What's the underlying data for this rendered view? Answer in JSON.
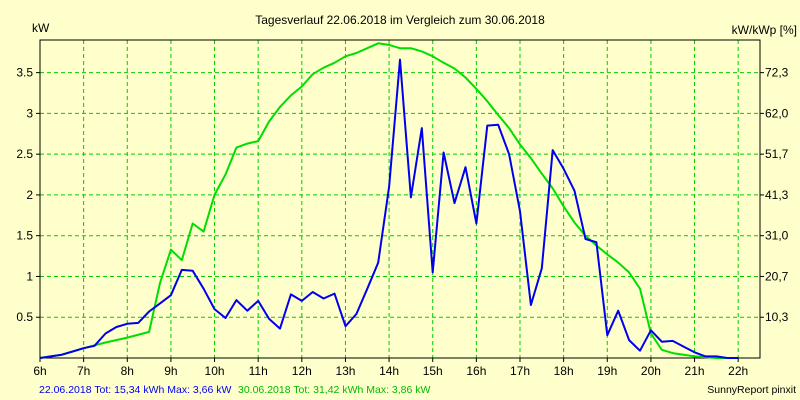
{
  "chart_data": {
    "type": "line",
    "title": "Tagesverlauf 22.06.2018 im Vergleich zum 30.06.2018",
    "ylabel_left": "kW",
    "ylabel_right": "kW/kWp [%]",
    "x_ticks": [
      "6h",
      "7h",
      "8h",
      "9h",
      "10h",
      "11h",
      "12h",
      "13h",
      "14h",
      "15h",
      "16h",
      "17h",
      "18h",
      "19h",
      "20h",
      "21h",
      "22h"
    ],
    "xlim": [
      6,
      22.5
    ],
    "ylim": [
      0,
      3.9
    ],
    "y_ticks": [
      0.5,
      1,
      1.5,
      2,
      2.5,
      3,
      3.5
    ],
    "y_tick_labels": [
      "0.5",
      "1",
      "1.5",
      "2",
      "2.5",
      "3",
      "3.5"
    ],
    "y2_ticks": [
      0.5,
      1.0,
      1.5,
      2.0,
      2.5,
      3.0,
      3.5
    ],
    "y2_tick_labels": [
      "10,3",
      "20,7",
      "31,0",
      "41,3",
      "51,7",
      "62,0",
      "72,3"
    ],
    "grid": true,
    "legend_texts": {
      "series1": "22.06.2018 Tot: 15,34 kWh Max: 3,66 kW",
      "series2": "30.06.2018 Tot: 31,42 kWh Max: 3,86 kW"
    },
    "credit": "SunnyReport pinxit",
    "series": [
      {
        "color": "#0000ee",
        "points": [
          [
            6.0,
            0.0
          ],
          [
            6.25,
            0.02
          ],
          [
            6.5,
            0.04
          ],
          [
            6.75,
            0.08
          ],
          [
            7.0,
            0.12
          ],
          [
            7.25,
            0.15
          ],
          [
            7.5,
            0.3
          ],
          [
            7.75,
            0.38
          ],
          [
            8.0,
            0.42
          ],
          [
            8.25,
            0.43
          ],
          [
            8.5,
            0.57
          ],
          [
            8.75,
            0.67
          ],
          [
            9.0,
            0.77
          ],
          [
            9.25,
            1.08
          ],
          [
            9.5,
            1.07
          ],
          [
            9.75,
            0.85
          ],
          [
            10.0,
            0.6
          ],
          [
            10.25,
            0.49
          ],
          [
            10.5,
            0.71
          ],
          [
            10.75,
            0.58
          ],
          [
            11.0,
            0.7
          ],
          [
            11.25,
            0.48
          ],
          [
            11.5,
            0.36
          ],
          [
            11.75,
            0.78
          ],
          [
            12.0,
            0.7
          ],
          [
            12.25,
            0.81
          ],
          [
            12.5,
            0.73
          ],
          [
            12.75,
            0.79
          ],
          [
            13.0,
            0.39
          ],
          [
            13.25,
            0.54
          ],
          [
            13.5,
            0.85
          ],
          [
            13.75,
            1.17
          ],
          [
            14.0,
            2.1
          ],
          [
            14.25,
            3.66
          ],
          [
            14.5,
            1.97
          ],
          [
            14.75,
            2.82
          ],
          [
            15.0,
            1.05
          ],
          [
            15.25,
            2.52
          ],
          [
            15.5,
            1.9
          ],
          [
            15.75,
            2.34
          ],
          [
            16.0,
            1.65
          ],
          [
            16.25,
            2.85
          ],
          [
            16.5,
            2.86
          ],
          [
            16.75,
            2.5
          ],
          [
            17.0,
            1.8
          ],
          [
            17.25,
            0.65
          ],
          [
            17.5,
            1.1
          ],
          [
            17.75,
            2.55
          ],
          [
            18.0,
            2.32
          ],
          [
            18.25,
            2.05
          ],
          [
            18.5,
            1.46
          ],
          [
            18.75,
            1.42
          ],
          [
            19.0,
            0.28
          ],
          [
            19.25,
            0.58
          ],
          [
            19.5,
            0.22
          ],
          [
            19.75,
            0.09
          ],
          [
            20.0,
            0.34
          ],
          [
            20.25,
            0.2
          ],
          [
            20.5,
            0.21
          ],
          [
            20.75,
            0.14
          ],
          [
            21.0,
            0.07
          ],
          [
            21.25,
            0.02
          ],
          [
            21.5,
            0.02
          ],
          [
            21.75,
            0.0
          ],
          [
            22.0,
            0.0
          ]
        ]
      },
      {
        "color": "#00dd00",
        "points": [
          [
            6.0,
            0.0
          ],
          [
            6.5,
            0.04
          ],
          [
            7.0,
            0.12
          ],
          [
            7.5,
            0.19
          ],
          [
            8.0,
            0.25
          ],
          [
            8.5,
            0.32
          ],
          [
            8.75,
            0.92
          ],
          [
            9.0,
            1.33
          ],
          [
            9.25,
            1.2
          ],
          [
            9.5,
            1.65
          ],
          [
            9.75,
            1.55
          ],
          [
            10.0,
            2.0
          ],
          [
            10.25,
            2.25
          ],
          [
            10.5,
            2.58
          ],
          [
            10.75,
            2.63
          ],
          [
            11.0,
            2.66
          ],
          [
            11.25,
            2.9
          ],
          [
            11.5,
            3.08
          ],
          [
            11.75,
            3.22
          ],
          [
            12.0,
            3.33
          ],
          [
            12.25,
            3.48
          ],
          [
            12.5,
            3.56
          ],
          [
            12.75,
            3.62
          ],
          [
            13.0,
            3.7
          ],
          [
            13.25,
            3.74
          ],
          [
            13.5,
            3.8
          ],
          [
            13.75,
            3.86
          ],
          [
            14.0,
            3.84
          ],
          [
            14.25,
            3.8
          ],
          [
            14.5,
            3.8
          ],
          [
            14.75,
            3.76
          ],
          [
            15.0,
            3.7
          ],
          [
            15.25,
            3.62
          ],
          [
            15.5,
            3.55
          ],
          [
            15.75,
            3.44
          ],
          [
            16.0,
            3.3
          ],
          [
            16.25,
            3.15
          ],
          [
            16.5,
            2.98
          ],
          [
            16.75,
            2.82
          ],
          [
            17.0,
            2.62
          ],
          [
            17.25,
            2.45
          ],
          [
            17.5,
            2.26
          ],
          [
            17.75,
            2.08
          ],
          [
            18.0,
            1.86
          ],
          [
            18.25,
            1.66
          ],
          [
            18.5,
            1.5
          ],
          [
            18.75,
            1.38
          ],
          [
            19.0,
            1.27
          ],
          [
            19.25,
            1.17
          ],
          [
            19.5,
            1.05
          ],
          [
            19.75,
            0.85
          ],
          [
            20.0,
            0.3
          ],
          [
            20.25,
            0.1
          ],
          [
            20.5,
            0.06
          ],
          [
            20.75,
            0.04
          ],
          [
            21.0,
            0.02
          ],
          [
            21.5,
            0.0
          ],
          [
            22.0,
            0.0
          ]
        ]
      }
    ]
  }
}
